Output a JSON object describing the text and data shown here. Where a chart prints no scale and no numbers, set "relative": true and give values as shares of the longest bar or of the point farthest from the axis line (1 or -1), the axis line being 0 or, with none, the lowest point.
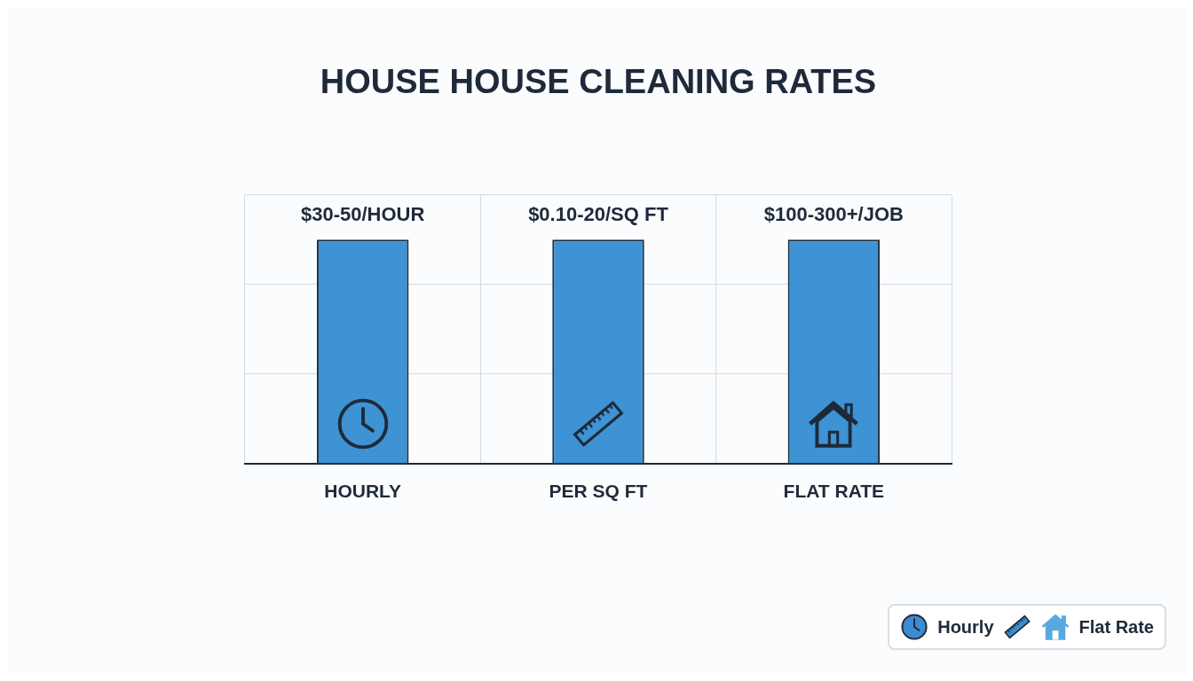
{
  "chart_data": {
    "type": "bar",
    "title": "HOUSE HOUSE CLEANING RATES",
    "categories": [
      "HOURLY",
      "PER SQ FT",
      "FLAT RATE"
    ],
    "values": [
      1,
      1,
      1
    ],
    "color": "#3d93d3",
    "relative": true,
    "grid": true,
    "annotations": [
      {
        "text": "$30-50/HOUR",
        "x": "HOURLY",
        "y": 1
      },
      {
        "text": "$0.10-20/SQ FT",
        "x": "PER SQ FT",
        "y": 1
      },
      {
        "text": "$100-300+/JOB",
        "x": "FLAT RATE",
        "y": 1
      },
      "Hourly",
      "Flat Rate"
    ]
  }
}
